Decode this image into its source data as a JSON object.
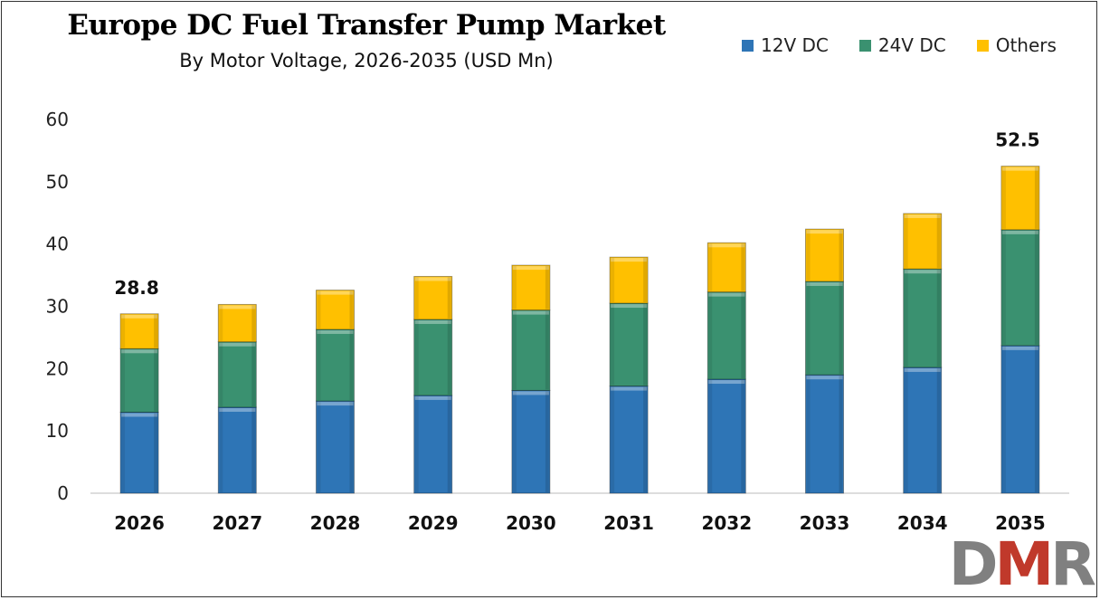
{
  "chart_data": {
    "type": "bar",
    "stacked": true,
    "title": "Europe DC Fuel Transfer Pump Market",
    "subtitle": "By Motor Voltage, 2026-2035 (USD Mn)",
    "xlabel": "",
    "ylabel": "",
    "ylim": [
      0,
      60
    ],
    "yticks": [
      0,
      10,
      20,
      30,
      40,
      50,
      60
    ],
    "grid": false,
    "legend_position": "top-right",
    "categories": [
      "2026",
      "2027",
      "2028",
      "2029",
      "2030",
      "2031",
      "2032",
      "2033",
      "2034",
      "2035"
    ],
    "series": [
      {
        "name": "12V DC",
        "color": "#2E75B6",
        "values": [
          13.0,
          13.8,
          14.8,
          15.7,
          16.5,
          17.2,
          18.3,
          19.0,
          20.2,
          23.7
        ]
      },
      {
        "name": "24V DC",
        "color": "#3A9170",
        "values": [
          10.2,
          10.5,
          11.5,
          12.2,
          12.9,
          13.3,
          14.0,
          15.0,
          15.8,
          18.6
        ]
      },
      {
        "name": "Others",
        "color": "#FFC000",
        "values": [
          5.6,
          6.0,
          6.3,
          6.9,
          7.2,
          7.4,
          7.9,
          8.4,
          8.9,
          10.2
        ]
      }
    ],
    "annotations": [
      {
        "category": "2026",
        "text": "28.8"
      },
      {
        "category": "2035",
        "text": "52.5"
      }
    ]
  },
  "logo": {
    "text": "DMR",
    "colors": [
      "#808080",
      "#C0392B",
      "#808080"
    ]
  }
}
